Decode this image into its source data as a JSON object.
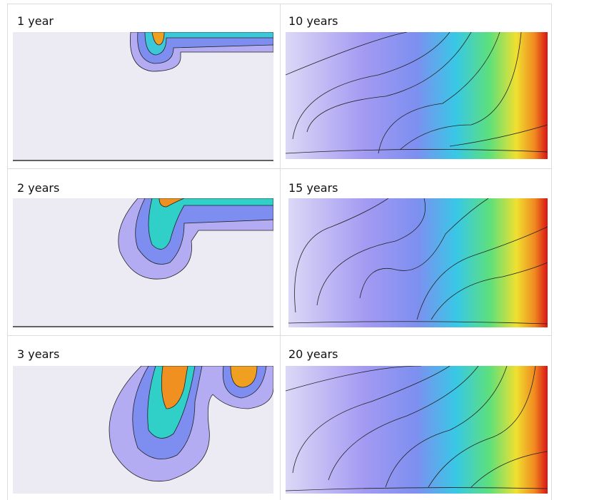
{
  "table": {
    "rows": [
      [
        "1 year",
        "10 years"
      ],
      [
        "2 years",
        "15 years"
      ],
      [
        "3 years",
        "20 years"
      ]
    ]
  }
}
